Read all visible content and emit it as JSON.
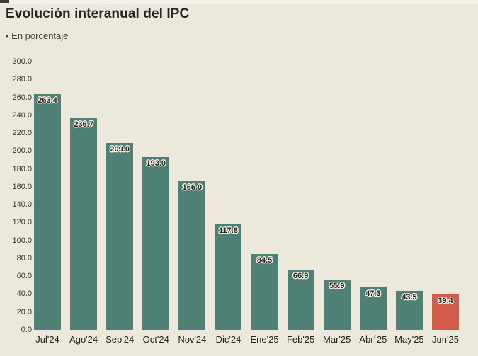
{
  "page": {
    "background_color": "#ece8dc",
    "top_mark_color": "#3b3a37"
  },
  "header": {
    "title": "Evolución interanual del IPC",
    "subtitle": "• En porcentaje"
  },
  "chart_data": {
    "type": "bar",
    "title": "Evolución interanual del IPC",
    "subtitle": "• En porcentaje",
    "categories": [
      "Jul'24",
      "Ago'24",
      "Sep'24",
      "Oct'24",
      "Nov'24",
      "Dic'24",
      "Ene'25",
      "Feb'25",
      "Mar'25",
      "Abr´25",
      "May'25",
      "Jun'25"
    ],
    "values": [
      263.4,
      236.7,
      209.0,
      193.0,
      166.0,
      117.8,
      84.5,
      66.9,
      55.9,
      47.3,
      43.5,
      39.4
    ],
    "value_labels": [
      "263.4",
      "236.7",
      "209.0",
      "193.0",
      "166.0",
      "117.8",
      "84.5",
      "66.9",
      "55.9",
      "47.3",
      "43.5",
      "39.4"
    ],
    "xlabel": "",
    "ylabel": "",
    "ylim": [
      0,
      300
    ],
    "ytick_labels": [
      "0.0",
      "20.0",
      "40.0",
      "60.0",
      "80.0",
      "100.0",
      "120.0",
      "140.0",
      "160.0",
      "180.0",
      "200.0",
      "220.0",
      "240.0",
      "260.0",
      "280.0",
      "300.0"
    ],
    "ytick_values": [
      0,
      20,
      40,
      60,
      80,
      100,
      120,
      140,
      160,
      180,
      200,
      220,
      240,
      260,
      280,
      300
    ],
    "grid": false,
    "legend": null,
    "bar_color": "#4e8076",
    "highlight_color": "#d25b4a",
    "highlight_index": 11,
    "value_label_text_color": "#26221e",
    "value_label_outline_color": "#f2eee3"
  }
}
